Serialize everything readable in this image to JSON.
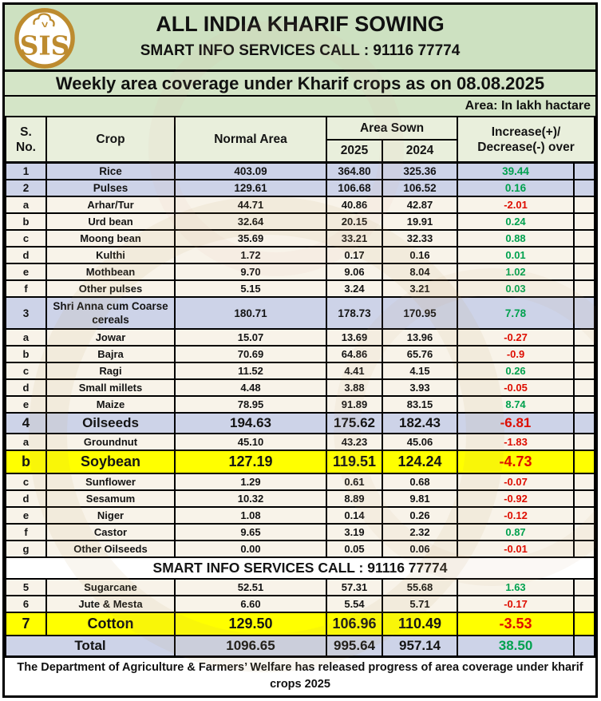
{
  "colors": {
    "header_green": "#cde1c1",
    "band_green": "#d4e5c7",
    "column_header_green": "#e9efdc",
    "category_lavender": "#cdd3e8",
    "detail_cream": "#f8f3e9",
    "highlight_yellow": "#ffff00",
    "positive_green": "#00a14e",
    "negative_red": "#de0d00",
    "logo_gold": "#bd8b2f"
  },
  "masthead": {
    "logo": "sis-cotton-monogram",
    "logo_text": "SIS",
    "title": "ALL INDIA KHARIF SOWING",
    "subtitle": "SMART INFO SERVICES CALL : 91116 77774"
  },
  "banners": {
    "weekly": "Weekly area coverage under Kharif crops as on 08.08.2025",
    "area_note": "Area:  In lakh hactare"
  },
  "table": {
    "headers": {
      "sno_line1": "S.",
      "sno_line2": "No.",
      "crop": "Crop",
      "normal_area": "Normal Area",
      "area_sown": "Area Sown",
      "year_2025": "2025",
      "year_2024": "2024",
      "inc_line1": "Increase(+)/",
      "inc_line2": "Decrease(-) over"
    },
    "rows": [
      {
        "type": "cat",
        "sno": "1",
        "crop": "Rice",
        "normal": "403.09",
        "sown_2025": "364.80",
        "sown_2024": "325.36",
        "diff": "39.44",
        "trend": "up"
      },
      {
        "type": "cat",
        "sno": "2",
        "crop": "Pulses",
        "normal": "129.61",
        "sown_2025": "106.68",
        "sown_2024": "106.52",
        "diff": "0.16",
        "trend": "up"
      },
      {
        "type": "detail",
        "sno": "a",
        "crop": "Arhar/Tur",
        "normal": "44.71",
        "sown_2025": "40.86",
        "sown_2024": "42.87",
        "diff": "-2.01",
        "trend": "down"
      },
      {
        "type": "detail",
        "sno": "b",
        "crop": "Urd bean",
        "normal": "32.64",
        "sown_2025": "20.15",
        "sown_2024": "19.91",
        "diff": "0.24",
        "trend": "up"
      },
      {
        "type": "detail",
        "sno": "c",
        "crop": "Moong bean",
        "normal": "35.69",
        "sown_2025": "33.21",
        "sown_2024": "32.33",
        "diff": "0.88",
        "trend": "up"
      },
      {
        "type": "detail",
        "sno": "d",
        "crop": "Kulthi",
        "normal": "1.72",
        "sown_2025": "0.17",
        "sown_2024": "0.16",
        "diff": "0.01",
        "trend": "up"
      },
      {
        "type": "detail",
        "sno": "e",
        "crop": "Mothbean",
        "normal": "9.70",
        "sown_2025": "9.06",
        "sown_2024": "8.04",
        "diff": "1.02",
        "trend": "up"
      },
      {
        "type": "detail",
        "sno": "f",
        "crop": "Other pulses",
        "normal": "5.15",
        "sown_2025": "3.24",
        "sown_2024": "3.21",
        "diff": "0.03",
        "trend": "up"
      },
      {
        "type": "cat3",
        "sno": "3",
        "crop": "Shri Anna cum Coarse cereals",
        "normal": "180.71",
        "sown_2025": "178.73",
        "sown_2024": "170.95",
        "diff": "7.78",
        "trend": "up"
      },
      {
        "type": "detail",
        "sno": "a",
        "crop": "Jowar",
        "normal": "15.07",
        "sown_2025": "13.69",
        "sown_2024": "13.96",
        "diff": "-0.27",
        "trend": "down"
      },
      {
        "type": "detail",
        "sno": "b",
        "crop": "Bajra",
        "normal": "70.69",
        "sown_2025": "64.86",
        "sown_2024": "65.76",
        "diff": "-0.9",
        "trend": "down"
      },
      {
        "type": "detail",
        "sno": "c",
        "crop": "Ragi",
        "normal": "11.52",
        "sown_2025": "4.41",
        "sown_2024": "4.15",
        "diff": "0.26",
        "trend": "up"
      },
      {
        "type": "detail",
        "sno": "d",
        "crop": "Small millets",
        "normal": "4.48",
        "sown_2025": "3.88",
        "sown_2024": "3.93",
        "diff": "-0.05",
        "trend": "down"
      },
      {
        "type": "detail",
        "sno": "e",
        "crop": "Maize",
        "normal": "78.95",
        "sown_2025": "91.89",
        "sown_2024": "83.15",
        "diff": "8.74",
        "trend": "up"
      },
      {
        "type": "big",
        "sno": "4",
        "crop": "Oilseeds",
        "normal": "194.63",
        "sown_2025": "175.62",
        "sown_2024": "182.43",
        "diff": "-6.81",
        "trend": "down"
      },
      {
        "type": "detail",
        "sno": "a",
        "crop": "Groundnut",
        "normal": "45.10",
        "sown_2025": "43.23",
        "sown_2024": "45.06",
        "diff": "-1.83",
        "trend": "down"
      },
      {
        "type": "hl",
        "sno": "b",
        "crop": "Soybean",
        "normal": "127.19",
        "sown_2025": "119.51",
        "sown_2024": "124.24",
        "diff": "-4.73",
        "trend": "down"
      },
      {
        "type": "detail",
        "sno": "c",
        "crop": "Sunflower",
        "normal": "1.29",
        "sown_2025": "0.61",
        "sown_2024": "0.68",
        "diff": "-0.07",
        "trend": "down"
      },
      {
        "type": "detail",
        "sno": "d",
        "crop": "Sesamum",
        "normal": "10.32",
        "sown_2025": "8.89",
        "sown_2024": "9.81",
        "diff": "-0.92",
        "trend": "down"
      },
      {
        "type": "detail",
        "sno": "e",
        "crop": "Niger",
        "normal": "1.08",
        "sown_2025": "0.14",
        "sown_2024": "0.26",
        "diff": "-0.12",
        "trend": "down"
      },
      {
        "type": "detail",
        "sno": "f",
        "crop": "Castor",
        "normal": "9.65",
        "sown_2025": "3.19",
        "sown_2024": "2.32",
        "diff": "0.87",
        "trend": "up"
      },
      {
        "type": "detail",
        "sno": "g",
        "crop": "Other Oilseeds",
        "normal": "0.00",
        "sown_2025": "0.05",
        "sown_2024": "0.06",
        "diff": "-0.01",
        "trend": "down"
      },
      {
        "type": "banner",
        "text": "SMART INFO SERVICES CALL : 91116 77774"
      },
      {
        "type": "detail",
        "sno": "5",
        "crop": "Sugarcane",
        "normal": "52.51",
        "sown_2025": "57.31",
        "sown_2024": "55.68",
        "diff": "1.63",
        "trend": "up"
      },
      {
        "type": "detail",
        "sno": "6",
        "crop": "Jute & Mesta",
        "normal": "6.60",
        "sown_2025": "5.54",
        "sown_2024": "5.71",
        "diff": "-0.17",
        "trend": "down"
      },
      {
        "type": "hl",
        "sno": "7",
        "crop": "Cotton",
        "normal": "129.50",
        "sown_2025": "106.96",
        "sown_2024": "110.49",
        "diff": "-3.53",
        "trend": "down"
      },
      {
        "type": "total",
        "crop": "Total",
        "normal": "1096.65",
        "sown_2025": "995.64",
        "sown_2024": "957.14",
        "diff": "38.50",
        "trend": "up"
      }
    ]
  },
  "footer": {
    "note": "The Department of Agriculture & Farmers’ Welfare has released progress of area coverage under kharif crops 2025"
  }
}
